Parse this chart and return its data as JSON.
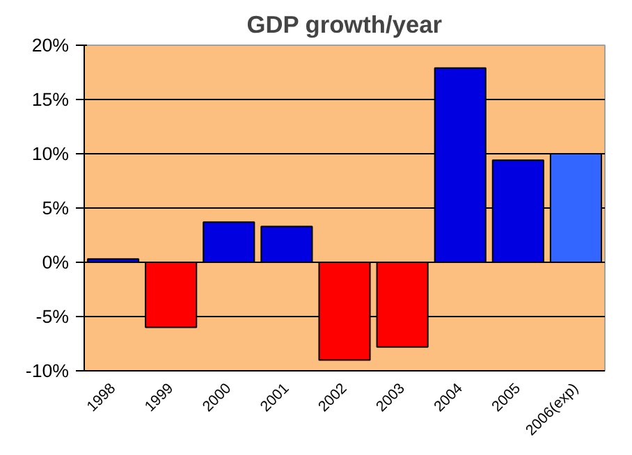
{
  "chart_data": {
    "type": "bar",
    "title": "GDP growth/year",
    "categories": [
      "1998",
      "1999",
      "2000",
      "2001",
      "2002",
      "2003",
      "2004",
      "2005",
      "2006(exp)"
    ],
    "values": [
      0.3,
      -6,
      3.7,
      3.3,
      -9,
      -7.8,
      17.9,
      9.4,
      10
    ],
    "colors": [
      "#0000e0",
      "#ff0000",
      "#0000e0",
      "#0000e0",
      "#ff0000",
      "#ff0000",
      "#0000e0",
      "#0000e0",
      "#3366ff"
    ],
    "ylim": [
      -10,
      20
    ],
    "yticks": [
      {
        "value": -10,
        "label": "-10%"
      },
      {
        "value": -5,
        "label": "-5%"
      },
      {
        "value": 0,
        "label": "0%"
      },
      {
        "value": 5,
        "label": "5%"
      },
      {
        "value": 10,
        "label": "10%"
      },
      {
        "value": 15,
        "label": "15%"
      },
      {
        "value": 20,
        "label": "20%"
      }
    ],
    "grid": "y"
  }
}
